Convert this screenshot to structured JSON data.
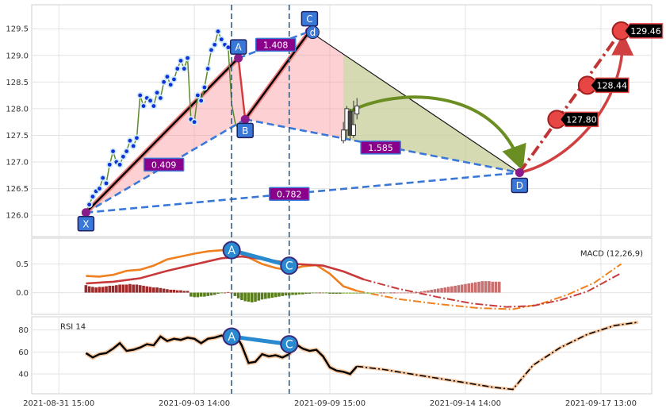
{
  "chart_data": [
    {
      "type": "line",
      "panel": "price",
      "ylim": [
        125.6,
        129.95
      ],
      "y_ticks": [
        126.0,
        126.5,
        127.0,
        127.5,
        128.0,
        128.5,
        129.0,
        129.5
      ],
      "x_ticks": [
        "2021-08-31 15:00",
        "2021-09-03 14:00",
        "2021-09-09 15:00",
        "2021-09-14 14:00",
        "2021-09-17 13:00"
      ],
      "x_tick_index": [
        0,
        40,
        80,
        120,
        160
      ],
      "x_range": [
        -8,
        175
      ],
      "grid": true,
      "series": [
        {
          "values": [
            126.05,
            126.2,
            126.35,
            126.45,
            126.5,
            126.7,
            126.6,
            126.95,
            127.2,
            127.0,
            126.95,
            127.1,
            127.2,
            127.4,
            127.3,
            127.45,
            128.25,
            128.05,
            128.2,
            128.15,
            128.05,
            128.3,
            128.2,
            128.5,
            128.6,
            128.45,
            128.55,
            128.75,
            128.9,
            128.75,
            128.95,
            127.8,
            127.75,
            128.25,
            128.15,
            128.4,
            128.75,
            129.1,
            129.2,
            129.45,
            129.3,
            129.2,
            129.15,
            128.1,
            127.75,
            127.6,
            127.45
          ]
        }
      ],
      "candles": [
        {
          "x": 84,
          "open": 127.4,
          "close": 127.6,
          "high": 127.75,
          "low": 127.35
        },
        {
          "x": 85,
          "open": 127.6,
          "close": 128.0,
          "high": 128.05,
          "low": 127.45
        },
        {
          "x": 86,
          "open": 127.95,
          "close": 127.5,
          "high": 128.0,
          "low": 127.4
        },
        {
          "x": 87,
          "open": 127.5,
          "close": 127.7,
          "high": 128.15,
          "low": 127.45
        },
        {
          "x": 88,
          "open": 127.9,
          "close": 128.05,
          "high": 128.2,
          "low": 127.8
        }
      ],
      "harmonic_points": [
        {
          "label": "X",
          "x": 8,
          "y": 126.05
        },
        {
          "label": "A",
          "x": 53,
          "y": 128.95
        },
        {
          "label": "B",
          "x": 55,
          "y": 127.8
        },
        {
          "label": "C",
          "x": 74,
          "y": 129.45
        },
        {
          "label": "D",
          "x": 136,
          "y": 126.8
        }
      ],
      "harmonic_inner_label": "d",
      "ratios": [
        {
          "text": "0.409",
          "x": 31,
          "y": 126.95
        },
        {
          "text": "1.408",
          "x": 64,
          "y": 129.2
        },
        {
          "text": "1.585",
          "x": 95,
          "y": 127.27
        },
        {
          "text": "0.782",
          "x": 68,
          "y": 126.4
        }
      ],
      "targets": [
        {
          "text": "127.80",
          "x": 147,
          "y": 127.8
        },
        {
          "text": "128.44",
          "x": 156,
          "y": 128.44
        },
        {
          "text": "129.46",
          "x": 166,
          "y": 129.46
        }
      ]
    },
    {
      "type": "bar",
      "panel": "macd",
      "title": "MACD (12,26,9)",
      "ylim": [
        -0.38,
        0.95
      ],
      "y_ticks": [
        0.0,
        0.5
      ],
      "macd_line": [
        [
          8,
          0.29
        ],
        [
          12,
          0.28
        ],
        [
          16,
          0.31
        ],
        [
          20,
          0.38
        ],
        [
          24,
          0.4
        ],
        [
          28,
          0.47
        ],
        [
          32,
          0.58
        ],
        [
          36,
          0.63
        ],
        [
          40,
          0.68
        ],
        [
          44,
          0.72
        ],
        [
          48,
          0.74
        ],
        [
          52,
          0.73
        ],
        [
          56,
          0.61
        ],
        [
          60,
          0.5
        ],
        [
          64,
          0.43
        ],
        [
          68,
          0.39
        ],
        [
          72,
          0.46
        ],
        [
          76,
          0.48
        ],
        [
          80,
          0.33
        ],
        [
          84,
          0.11
        ],
        [
          88,
          0.03
        ]
      ],
      "macd_forecast": [
        [
          88,
          0.03
        ],
        [
          100,
          -0.11
        ],
        [
          112,
          -0.2
        ],
        [
          124,
          -0.27
        ],
        [
          134,
          -0.29
        ],
        [
          142,
          -0.2
        ],
        [
          150,
          -0.04
        ],
        [
          158,
          0.17
        ],
        [
          166,
          0.5
        ]
      ],
      "signal_line": [
        [
          8,
          0.16
        ],
        [
          16,
          0.19
        ],
        [
          24,
          0.25
        ],
        [
          32,
          0.38
        ],
        [
          40,
          0.49
        ],
        [
          48,
          0.6
        ],
        [
          54,
          0.63
        ],
        [
          62,
          0.57
        ],
        [
          70,
          0.5
        ],
        [
          78,
          0.47
        ],
        [
          84,
          0.37
        ],
        [
          90,
          0.23
        ]
      ],
      "signal_forecast": [
        [
          90,
          0.23
        ],
        [
          100,
          0.07
        ],
        [
          112,
          -0.08
        ],
        [
          122,
          -0.19
        ],
        [
          132,
          -0.25
        ],
        [
          140,
          -0.23
        ],
        [
          148,
          -0.13
        ],
        [
          156,
          0.02
        ],
        [
          166,
          0.34
        ]
      ],
      "histogram_start": 8,
      "histogram": [
        0.13,
        0.11,
        0.1,
        0.09,
        0.1,
        0.1,
        0.11,
        0.12,
        0.12,
        0.13,
        0.14,
        0.14,
        0.14,
        0.15,
        0.14,
        0.14,
        0.13,
        0.12,
        0.11,
        0.1,
        0.09,
        0.09,
        0.08,
        0.07,
        0.06,
        0.05,
        0.05,
        0.04,
        0.04,
        0.03,
        0.03,
        -0.07,
        -0.08,
        -0.08,
        -0.07,
        -0.07,
        -0.06,
        -0.05,
        -0.04,
        -0.02,
        -0.01,
        0.0,
        0.01,
        0.0,
        -0.06,
        -0.1,
        -0.13,
        -0.15,
        -0.16,
        -0.17,
        -0.16,
        -0.14,
        -0.12,
        -0.11,
        -0.1,
        -0.09,
        -0.08,
        -0.07,
        -0.06,
        -0.05,
        -0.05,
        -0.04,
        -0.04,
        -0.03,
        -0.03,
        -0.02,
        -0.02,
        -0.01,
        -0.01,
        0.0,
        -0.01,
        -0.01,
        -0.02,
        -0.02,
        -0.02,
        -0.02,
        -0.02,
        -0.02,
        -0.02,
        -0.02,
        -0.02,
        -0.02,
        -0.02,
        -0.02,
        -0.02,
        -0.01,
        -0.01,
        0.0,
        0.0,
        -0.01,
        0.0,
        0.0,
        0.0,
        0.0,
        0.0,
        0.0,
        0.0,
        0.0,
        0.01,
        0.02,
        0.03,
        0.04,
        0.05,
        0.06,
        0.07,
        0.08,
        0.09,
        0.1,
        0.11,
        0.12,
        0.13,
        0.14,
        0.15,
        0.16,
        0.17,
        0.18,
        0.19,
        0.2,
        0.2,
        0.2,
        0.19,
        0.19,
        0.19
      ],
      "points": [
        {
          "label": "A",
          "x": 51,
          "y": 0.74
        },
        {
          "label": "C",
          "x": 68,
          "y": 0.47
        }
      ]
    },
    {
      "type": "line",
      "panel": "rsi",
      "title": "RSI 14",
      "ylim": [
        22,
        92
      ],
      "y_ticks": [
        40,
        60,
        80
      ],
      "rsi_actual": [
        [
          8,
          59
        ],
        [
          10,
          55
        ],
        [
          12,
          58
        ],
        [
          14,
          59
        ],
        [
          16,
          63
        ],
        [
          18,
          68
        ],
        [
          20,
          61
        ],
        [
          22,
          62
        ],
        [
          24,
          64
        ],
        [
          26,
          67
        ],
        [
          28,
          66
        ],
        [
          30,
          74
        ],
        [
          32,
          70
        ],
        [
          34,
          72
        ],
        [
          36,
          71
        ],
        [
          38,
          73
        ],
        [
          40,
          72
        ],
        [
          42,
          68
        ],
        [
          44,
          72
        ],
        [
          46,
          73
        ],
        [
          48,
          75
        ],
        [
          50,
          73
        ],
        [
          52,
          77
        ],
        [
          54,
          66
        ],
        [
          56,
          50
        ],
        [
          58,
          51
        ],
        [
          60,
          58
        ],
        [
          62,
          56
        ],
        [
          64,
          57
        ],
        [
          66,
          55
        ],
        [
          68,
          58
        ],
        [
          70,
          67
        ],
        [
          72,
          63
        ],
        [
          74,
          61
        ],
        [
          76,
          62
        ],
        [
          78,
          56
        ],
        [
          80,
          46
        ],
        [
          82,
          43
        ],
        [
          84,
          42
        ],
        [
          86,
          40
        ],
        [
          88,
          47
        ]
      ],
      "rsi_forecast": [
        [
          88,
          47
        ],
        [
          96,
          44
        ],
        [
          104,
          40
        ],
        [
          112,
          36
        ],
        [
          120,
          32
        ],
        [
          128,
          28
        ],
        [
          134,
          26
        ],
        [
          140,
          48
        ],
        [
          148,
          64
        ],
        [
          156,
          76
        ],
        [
          164,
          84
        ],
        [
          171,
          87
        ]
      ],
      "points": [
        {
          "label": "A",
          "x": 51,
          "y": 74
        },
        {
          "label": "C",
          "x": 68,
          "y": 67
        }
      ]
    }
  ],
  "markers": {
    "vline_x": [
      51,
      68
    ]
  }
}
